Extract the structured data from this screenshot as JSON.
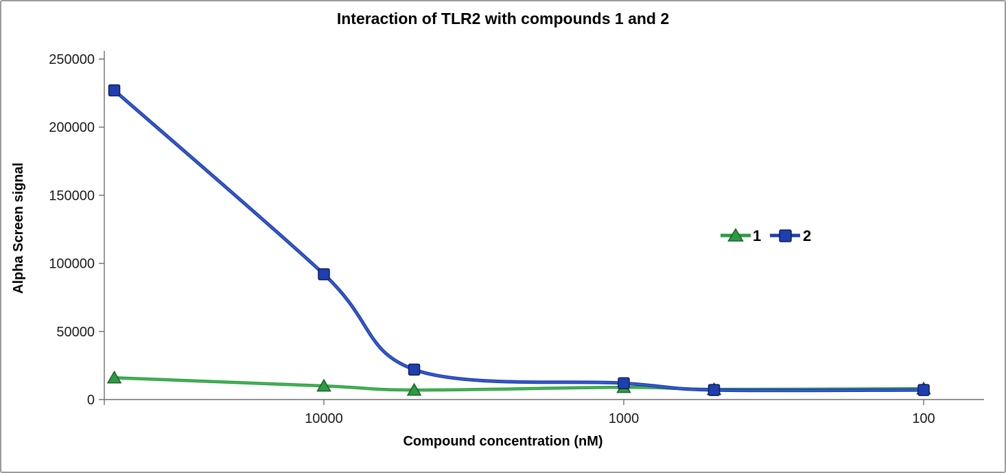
{
  "chart_data": {
    "type": "line",
    "title": "Interaction of TLR2 with compounds 1 and 2",
    "xlabel": "Compound concentration (nM)",
    "ylabel": "Alpha Screen signal",
    "x_scale": "log10",
    "x_axis_direction": "reversed",
    "x": [
      50000,
      10000,
      5000,
      1000,
      500,
      100
    ],
    "x_tick_values": [
      10000,
      1000,
      100
    ],
    "y_tick_values": [
      0,
      50000,
      100000,
      150000,
      200000,
      250000
    ],
    "ylim": [
      0,
      250000
    ],
    "grid": "off",
    "legend": {
      "position": "inside-right",
      "entries": [
        "1",
        "2"
      ]
    },
    "series": [
      {
        "name": "1",
        "marker": "triangle",
        "color": "#2E9B44",
        "edge": "#1A5E26",
        "highlight": "#55C763",
        "line_width": 4.5,
        "values": [
          16000,
          10000,
          7000,
          9000,
          7500,
          8000
        ]
      },
      {
        "name": "2",
        "marker": "square",
        "color": "#1E3FAF",
        "edge": "#101F55",
        "highlight": "#4E71E8",
        "line_width": 5,
        "values": [
          227000,
          92000,
          22000,
          12000,
          7000,
          7000
        ]
      }
    ]
  }
}
